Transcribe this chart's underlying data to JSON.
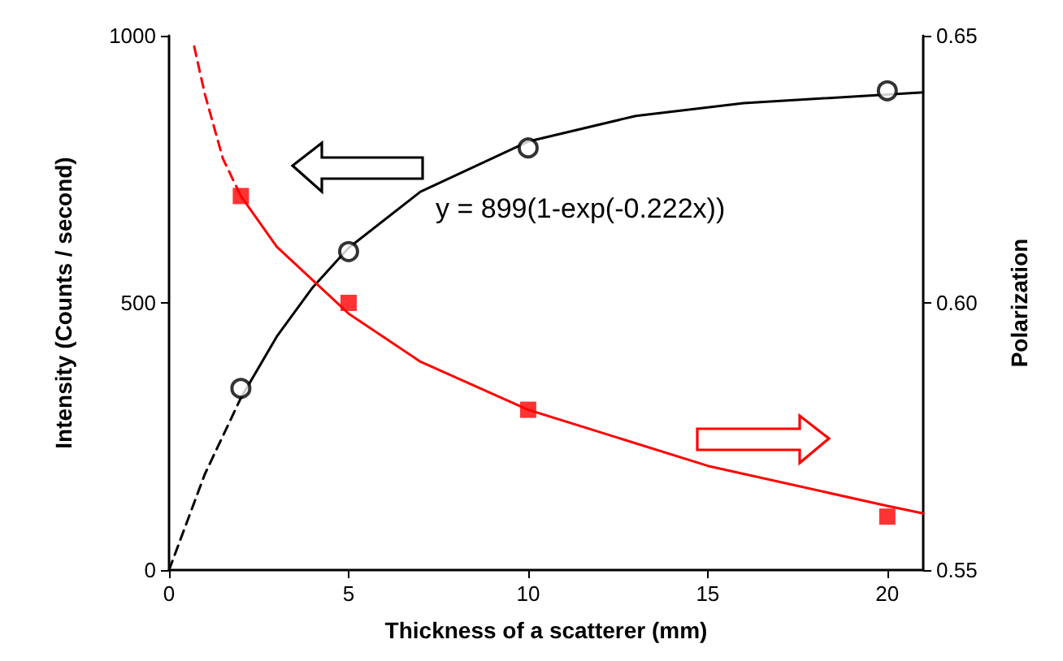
{
  "chart_data": {
    "type": "line",
    "xlabel": "Thickness of a scatterer (mm)",
    "ylabel": "Intensity (Counts / second)",
    "y2label": "Polarization",
    "xlim": [
      0,
      21
    ],
    "xticks": [
      0,
      5,
      10,
      15,
      20
    ],
    "ylim": [
      0,
      1000
    ],
    "yticks": [
      0,
      500,
      1000
    ],
    "y2lim": [
      0.55,
      0.65
    ],
    "y2ticks": [
      {
        "value": 0.55,
        "label": "0.55"
      },
      {
        "value": 0.6,
        "label": "0.60"
      },
      {
        "value": 0.65,
        "label": "0.65"
      }
    ],
    "grid": false,
    "annotations": [
      "y = 899(1-exp(-0.222x))"
    ],
    "series": [
      {
        "color": "#000000",
        "line_style": "dashed",
        "marker": "none",
        "x": [
          0,
          1,
          2
        ],
        "values": [
          0,
          180,
          322
        ]
      },
      {
        "color": "#000000",
        "line_style": "solid",
        "marker": "none",
        "x": [
          2,
          3,
          4,
          5,
          7,
          10,
          13,
          16,
          21
        ],
        "values": [
          322,
          437,
          529,
          603,
          708,
          802,
          850,
          874,
          894
        ]
      },
      {
        "type": "scatter",
        "color": "#000000",
        "marker": "circle",
        "x": [
          2,
          5,
          10,
          20
        ],
        "values": [
          340,
          596,
          790,
          897
        ]
      },
      {
        "axis": "y2",
        "color": "#ff0000",
        "line_style": "dashed",
        "marker": "none",
        "x": [
          0.7,
          1,
          1.5,
          2
        ],
        "values": [
          0.648,
          0.639,
          0.627,
          0.62
        ]
      },
      {
        "axis": "y2",
        "color": "#ff0000",
        "line_style": "solid",
        "marker": "none",
        "x": [
          2,
          3,
          5,
          7,
          10,
          15,
          20,
          21
        ],
        "values": [
          0.62,
          0.6105,
          0.598,
          0.589,
          0.58,
          0.5695,
          0.562,
          0.5606
        ]
      },
      {
        "type": "scatter",
        "axis": "y2",
        "color": "#ff0000",
        "marker": "square",
        "x": [
          2,
          5,
          10,
          20
        ],
        "values": [
          0.62,
          0.6,
          0.58,
          0.56
        ]
      }
    ]
  }
}
